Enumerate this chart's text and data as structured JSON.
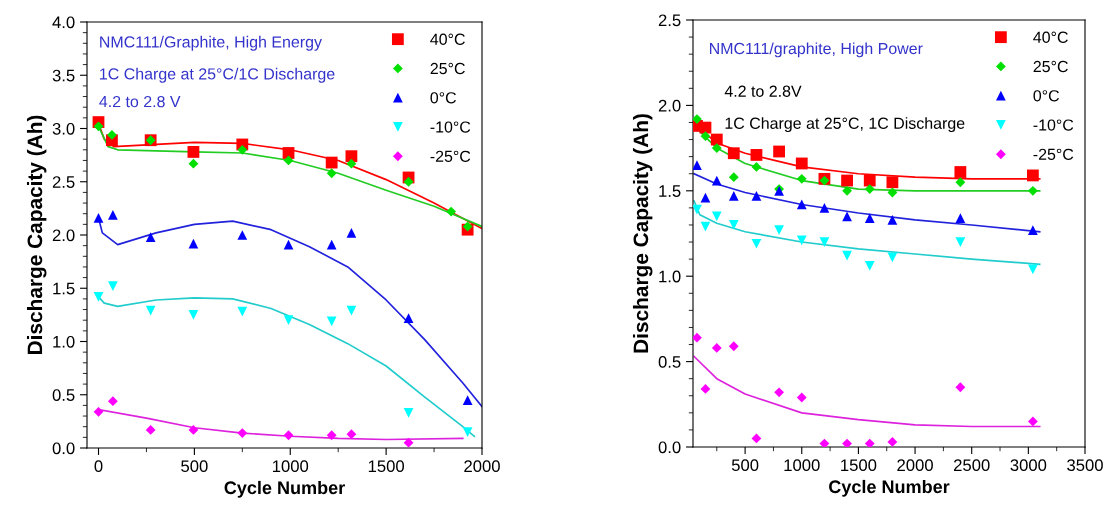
{
  "chart_data": [
    {
      "type": "scatter",
      "xlabel": "Cycle Number",
      "ylabel": "Discharge Capacity (Ah)",
      "xlim": [
        -60,
        2000
      ],
      "ylim": [
        0,
        4.0
      ],
      "xticks": [
        0,
        500,
        1000,
        1500,
        2000
      ],
      "yticks": [
        {
          "value": 0,
          "label": "0.0"
        },
        0.5,
        {
          "value": 1,
          "label": "1.0"
        },
        1.5,
        {
          "value": 2,
          "label": "2.0"
        },
        2.5,
        {
          "value": 3,
          "label": "3.0"
        },
        3.5,
        {
          "value": 4,
          "label": "4.0"
        }
      ],
      "legend": "top right",
      "grid": false,
      "annotations": [
        "NMC111/Graphite, High Energy",
        "1C Charge at 25°C/1C Discharge",
        "4.2 to 2.8 V"
      ],
      "series": [
        {
          "name": "40°C",
          "color": "#ff0000",
          "marker": "square",
          "x": [
            0,
            70,
            272,
            495,
            750,
            991,
            1216,
            1319,
            1617,
            1925
          ],
          "values": [
            3.06,
            2.89,
            2.89,
            2.78,
            2.85,
            2.77,
            2.68,
            2.74,
            2.54,
            2.05
          ]
        },
        {
          "name": "25°C",
          "color": "#00e000",
          "marker": "diamond",
          "x": [
            0,
            70,
            272,
            495,
            750,
            991,
            1216,
            1319,
            1617,
            1839,
            1925
          ],
          "values": [
            3.02,
            2.94,
            2.89,
            2.67,
            2.8,
            2.7,
            2.58,
            2.67,
            2.5,
            2.22,
            2.08
          ]
        },
        {
          "name": "0°C",
          "color": "#0000ff",
          "marker": "triangle",
          "x": [
            0,
            75,
            272,
            495,
            750,
            991,
            1216,
            1319,
            1617,
            1925
          ],
          "values": [
            2.16,
            2.19,
            1.98,
            1.92,
            2.0,
            1.91,
            1.91,
            2.02,
            1.22,
            0.45
          ]
        },
        {
          "name": "-10°C",
          "color": "#00ffff",
          "marker": "triangle_down",
          "x": [
            0,
            75,
            272,
            495,
            750,
            991,
            1216,
            1319,
            1617,
            1925
          ],
          "values": [
            1.42,
            1.52,
            1.29,
            1.25,
            1.28,
            1.2,
            1.19,
            1.29,
            0.33,
            0.15
          ]
        },
        {
          "name": "-25°C",
          "color": "#ff00ff",
          "marker": "diamond",
          "x": [
            0,
            75,
            272,
            495,
            750,
            991,
            1216,
            1319,
            1617
          ],
          "values": [
            0.34,
            0.44,
            0.17,
            0.17,
            0.14,
            0.12,
            0.12,
            0.13,
            0.05
          ]
        },
        {
          "type": "line",
          "color": "#ff0000",
          "x": [
            0,
            30,
            80,
            500,
            750,
            1000,
            1250,
            1500,
            1750,
            2000
          ],
          "values": [
            3.05,
            2.9,
            2.83,
            2.87,
            2.86,
            2.8,
            2.7,
            2.52,
            2.3,
            2.06
          ]
        },
        {
          "type": "line",
          "color": "#22cc22",
          "x": [
            0,
            50,
            100,
            500,
            750,
            1000,
            1250,
            1500,
            1750,
            2000
          ],
          "values": [
            3.02,
            2.83,
            2.8,
            2.78,
            2.77,
            2.7,
            2.58,
            2.42,
            2.27,
            2.08
          ]
        },
        {
          "type": "line",
          "color": "#2222dd",
          "x": [
            0,
            20,
            100,
            300,
            500,
            700,
            900,
            1100,
            1300,
            1500,
            1700,
            1900,
            2000
          ],
          "values": [
            2.16,
            2.02,
            1.91,
            2.02,
            2.1,
            2.13,
            2.05,
            1.89,
            1.7,
            1.39,
            1.02,
            0.61,
            0.39
          ]
        },
        {
          "type": "line",
          "color": "#22cccc",
          "x": [
            0,
            30,
            100,
            300,
            500,
            700,
            900,
            1100,
            1300,
            1500,
            1700,
            1900,
            1960
          ],
          "values": [
            1.42,
            1.36,
            1.33,
            1.39,
            1.41,
            1.4,
            1.31,
            1.16,
            0.98,
            0.77,
            0.48,
            0.2,
            0.11
          ]
        },
        {
          "type": "line",
          "color": "#dd22dd",
          "x": [
            0,
            250,
            500,
            750,
            1000,
            1250,
            1500,
            1900
          ],
          "values": [
            0.36,
            0.28,
            0.19,
            0.14,
            0.11,
            0.09,
            0.08,
            0.09
          ]
        }
      ]
    },
    {
      "type": "scatter",
      "xlabel": "Cycle Number",
      "ylabel": "Discharge Capacity (Ah)",
      "xlim": [
        40,
        3500
      ],
      "ylim": [
        0,
        2.5
      ],
      "xticks": [
        500,
        1000,
        1500,
        2000,
        2500,
        3000,
        3500
      ],
      "yticks": [
        {
          "value": 0,
          "label": "0.0"
        },
        0.5,
        {
          "value": 1,
          "label": "1.0"
        },
        1.5,
        {
          "value": 2,
          "label": "2.0"
        },
        2.5
      ],
      "legend": "top right",
      "grid": false,
      "annotations": [
        "NMC111/graphite, High Power",
        "4.2 to 2.8V",
        "1C Charge at 25°C, 1C Discharge"
      ],
      "series": [
        {
          "name": "40°C",
          "color": "#ff0000",
          "marker": "square",
          "x": [
            75,
            150,
            250,
            400,
            600,
            800,
            1000,
            1200,
            1400,
            1600,
            1800,
            2400,
            3040
          ],
          "values": [
            1.88,
            1.87,
            1.8,
            1.72,
            1.71,
            1.73,
            1.66,
            1.57,
            1.56,
            1.56,
            1.55,
            1.61,
            1.59
          ]
        },
        {
          "name": "25°C",
          "color": "#00e000",
          "marker": "diamond",
          "x": [
            75,
            150,
            250,
            400,
            600,
            800,
            1000,
            1200,
            1400,
            1600,
            1800,
            2400,
            3040
          ],
          "values": [
            1.92,
            1.82,
            1.75,
            1.58,
            1.64,
            1.51,
            1.57,
            1.56,
            1.5,
            1.51,
            1.49,
            1.55,
            1.5
          ]
        },
        {
          "name": "0°C",
          "color": "#0000ff",
          "marker": "triangle",
          "x": [
            75,
            150,
            250,
            400,
            600,
            800,
            1000,
            1200,
            1400,
            1600,
            1800,
            2400,
            3040
          ],
          "values": [
            1.65,
            1.46,
            1.56,
            1.47,
            1.47,
            1.5,
            1.42,
            1.4,
            1.35,
            1.34,
            1.33,
            1.34,
            1.27
          ]
        },
        {
          "name": "-10°C",
          "color": "#00ffff",
          "marker": "triangle_down",
          "x": [
            75,
            150,
            250,
            400,
            600,
            800,
            1000,
            1200,
            1400,
            1600,
            1800,
            2400,
            3040
          ],
          "values": [
            1.39,
            1.29,
            1.35,
            1.3,
            1.19,
            1.27,
            1.21,
            1.2,
            1.12,
            1.06,
            1.11,
            1.2,
            1.04
          ]
        },
        {
          "name": "-25°C",
          "color": "#ff00ff",
          "marker": "diamond",
          "x": [
            75,
            150,
            250,
            400,
            600,
            800,
            1000,
            1200,
            1400,
            1600,
            1800,
            2400,
            3040
          ],
          "values": [
            0.64,
            0.34,
            0.58,
            0.59,
            0.05,
            0.32,
            0.29,
            0.02,
            0.02,
            0.02,
            0.03,
            0.35,
            0.15
          ]
        },
        {
          "type": "line",
          "color": "#ff0000",
          "x": [
            50,
            250,
            500,
            1000,
            1500,
            2000,
            2500,
            3100
          ],
          "values": [
            1.89,
            1.78,
            1.72,
            1.64,
            1.6,
            1.58,
            1.57,
            1.57
          ]
        },
        {
          "type": "line",
          "color": "#22cc22",
          "x": [
            50,
            250,
            500,
            1000,
            1500,
            2000,
            3100
          ],
          "values": [
            1.88,
            1.75,
            1.66,
            1.56,
            1.51,
            1.5,
            1.5
          ]
        },
        {
          "type": "line",
          "color": "#2222dd",
          "x": [
            50,
            250,
            500,
            1000,
            1500,
            2000,
            2500,
            3100
          ],
          "values": [
            1.6,
            1.54,
            1.49,
            1.42,
            1.37,
            1.33,
            1.3,
            1.26
          ]
        },
        {
          "type": "line",
          "color": "#22cccc",
          "x": [
            50,
            100,
            250,
            500,
            1000,
            1500,
            2000,
            2500,
            3100
          ],
          "values": [
            1.44,
            1.36,
            1.31,
            1.26,
            1.2,
            1.16,
            1.13,
            1.1,
            1.07
          ]
        },
        {
          "type": "line",
          "color": "#dd22dd",
          "x": [
            50,
            250,
            500,
            1000,
            1500,
            2000,
            2500,
            3100
          ],
          "values": [
            0.53,
            0.4,
            0.31,
            0.2,
            0.16,
            0.13,
            0.12,
            0.12
          ]
        }
      ]
    }
  ]
}
